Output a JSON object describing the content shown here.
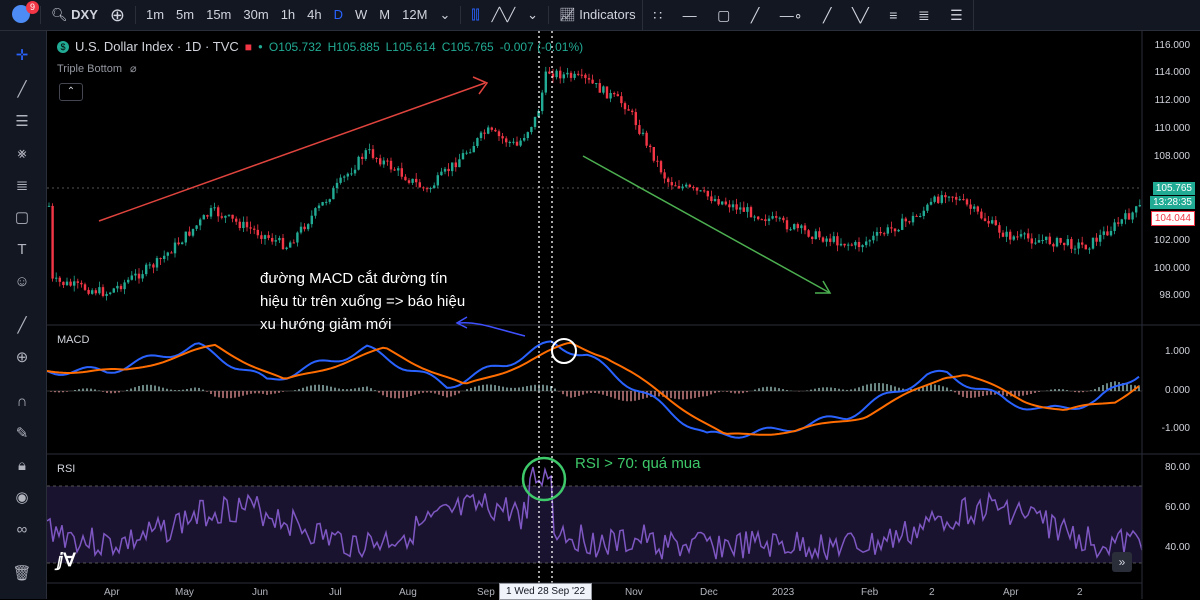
{
  "toolbar": {
    "badge": "9",
    "symbol": "DXY",
    "timeframes": [
      "1m",
      "5m",
      "15m",
      "30m",
      "1h",
      "4h",
      "D",
      "W",
      "M",
      "12M"
    ],
    "active_timeframe": "D",
    "indicators_label": "Indicators"
  },
  "legend": {
    "title": "U.S. Dollar Index · 1D · TVC",
    "open": "O105.732",
    "high": "H105.885",
    "low": "L105.614",
    "close": "C105.765",
    "change": "-0.007 (-0.01%)",
    "pattern": "Triple Bottom"
  },
  "price_axis": [
    "116.000",
    "114.000",
    "112.000",
    "110.000",
    "108.000",
    "106.000",
    "104.000",
    "102.000",
    "100.000",
    "98.000"
  ],
  "price_tags": {
    "last": "105.765",
    "countdown": "13:28:35",
    "prev": "104.044"
  },
  "macd": {
    "label": "MACD",
    "axis": [
      "1.000",
      "0.000",
      "-1.000"
    ]
  },
  "rsi": {
    "label": "RSI",
    "axis": [
      "80.00",
      "60.00",
      "40.00"
    ]
  },
  "x_axis": [
    "Apr",
    "May",
    "Jun",
    "Jul",
    "Aug",
    "Sep",
    "Nov",
    "Dec",
    "2023",
    "Feb",
    "2",
    "Apr",
    "2"
  ],
  "crosshair_date": "Wed 28 Sep '22",
  "annotations": {
    "macd_note": [
      "đường MACD cắt đường tín",
      "hiệu từ trên xuống => báo hiệu",
      "xu hướng giảm mới"
    ],
    "rsi_note": "RSI > 70: quá mua"
  },
  "colors": {
    "up": "#22ab94",
    "down": "#f23645",
    "macd": "#2962ff",
    "signal": "#ff6d00",
    "rsi": "#7e57c2",
    "uptrend": "#e0443e",
    "downtrend": "#4caf50"
  }
}
